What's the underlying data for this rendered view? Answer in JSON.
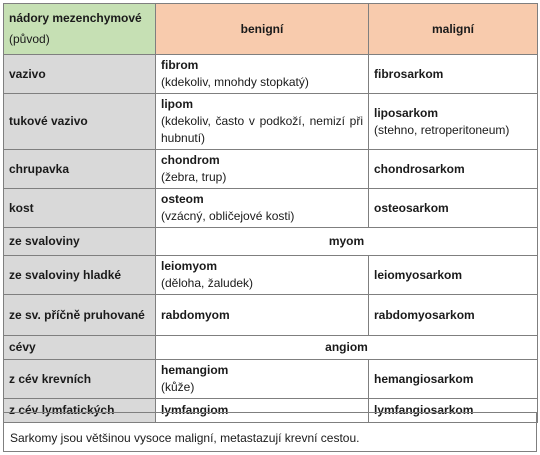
{
  "header": {
    "col1_line1": "nádory mezenchymové",
    "col1_line2": "(původ)",
    "col2": "benigní",
    "col3": "maligní"
  },
  "rows": [
    {
      "label": "vazivo",
      "benign_name": "fibrom",
      "benign_note": "(kdekoliv, mnohdy stopkatý)",
      "malign_name": "fibrosarkom",
      "malign_note": ""
    },
    {
      "label": "tukové vazivo",
      "benign_name": "lipom",
      "benign_note": "(kdekoliv, často v podkoží, nemizí při hubnutí)",
      "malign_name": "liposarkom",
      "malign_note": "(stehno, retroperitoneum)"
    },
    {
      "label": "chrupavka",
      "benign_name": "chondrom",
      "benign_note": "(žebra, trup)",
      "malign_name": "chondrosarkom",
      "malign_note": ""
    },
    {
      "label": "kost",
      "benign_name": "osteom",
      "benign_note": "(vzácný, obličejové kosti)",
      "malign_name": "osteosarkom",
      "malign_note": ""
    },
    {
      "label": "ze svaloviny",
      "span": "myom"
    },
    {
      "label": "ze svaloviny hladké",
      "benign_name": "leiomyom",
      "benign_note": "(děloha, žaludek)",
      "malign_name": "leiomyosarkom",
      "malign_note": ""
    },
    {
      "label": "ze sv. příčně pruhované",
      "benign_name": "rabdomyom",
      "benign_note": "",
      "malign_name": "rabdomyosarkom",
      "malign_note": ""
    },
    {
      "label": "cévy",
      "span": "angiom"
    },
    {
      "label": "z cév krevních",
      "benign_name": "hemangiom",
      "benign_note": "(kůže)",
      "malign_name": "hemangiosarkom",
      "malign_note": ""
    },
    {
      "label": "z cév lymfatických",
      "benign_name": "lymfangiom",
      "benign_note": "",
      "malign_name": "lymfangiosarkom",
      "malign_note": ""
    }
  ],
  "note": "Sarkomy jsou většinou vysoce maligní, metastazují krevní cestou.",
  "colors": {
    "header_first": "#c6e0b4",
    "header_other": "#f8cbad",
    "row_header": "#d9d9d9",
    "border": "#7f7f7f"
  }
}
